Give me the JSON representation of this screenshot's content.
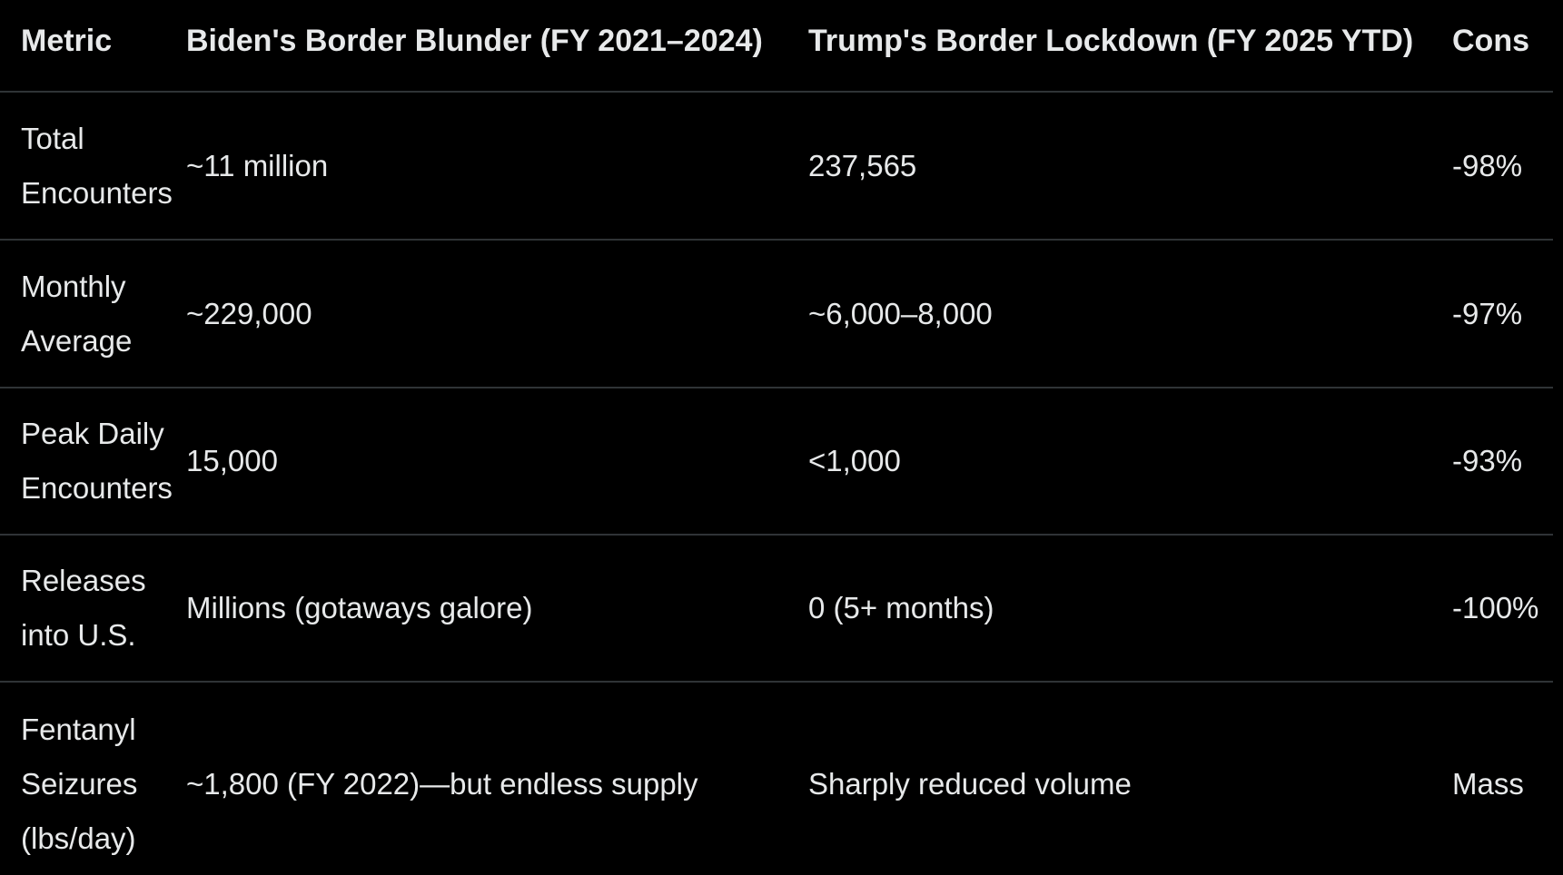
{
  "theme": {
    "background_color": "#000000",
    "text_color": "#e7e9ea",
    "divider_color": "#2f3336"
  },
  "chart_data": {
    "type": "table",
    "columns": [
      "Metric",
      "Biden's Border Blunder (FY 2021–2024)",
      "Trump's Border Lockdown (FY 2025 YTD)",
      "Cons"
    ],
    "rows": [
      {
        "metric": "Total Encounters",
        "biden": "~11 million",
        "trump": "237,565",
        "consequence": "-98%"
      },
      {
        "metric": "Monthly Average",
        "biden": "~229,000",
        "trump": "~6,000–8,000",
        "consequence": "-97%"
      },
      {
        "metric": "Peak Daily Encounters",
        "biden": "15,000",
        "trump": "<1,000",
        "consequence": "-93%"
      },
      {
        "metric": "Releases into U.S.",
        "biden": "Millions (gotaways galore)",
        "trump": "0 (5+ months)",
        "consequence": "-100%"
      },
      {
        "metric": "Fentanyl Seizures (lbs/day)",
        "biden": "~1,800 (FY 2022)—but endless supply",
        "trump": "Sharply reduced volume",
        "consequence": "Mass"
      }
    ]
  }
}
